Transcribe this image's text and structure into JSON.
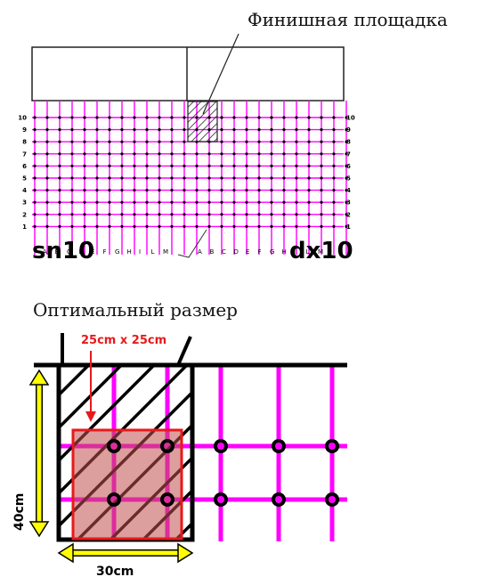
{
  "captions": {
    "finish_area": "Финишная площадка",
    "optimal_size": "Оптимальный размер"
  },
  "grid": {
    "row_labels": [
      "10",
      "9",
      "8",
      "7",
      "6",
      "5",
      "4",
      "3",
      "2",
      "1"
    ],
    "left_label": "sn10",
    "right_label": "dx10",
    "bottom_letters_left": [
      "A",
      "B",
      "C",
      "D",
      "E",
      "F",
      "G",
      "H",
      "I",
      "L",
      "M"
    ],
    "bottom_letters_right": [
      "A",
      "B",
      "C",
      "D",
      "E",
      "F",
      "G",
      "H",
      "I",
      "L",
      "M"
    ]
  },
  "detail": {
    "target_size_label": "25cm x 25cm",
    "height_label": "40cm",
    "width_label": "30cm"
  },
  "colors": {
    "grid_magenta": "#ff00ff",
    "target_red": "#e8191b",
    "target_fill": "#c0504d",
    "arrow_yellow": "#ffff00",
    "ink": "#000000"
  }
}
